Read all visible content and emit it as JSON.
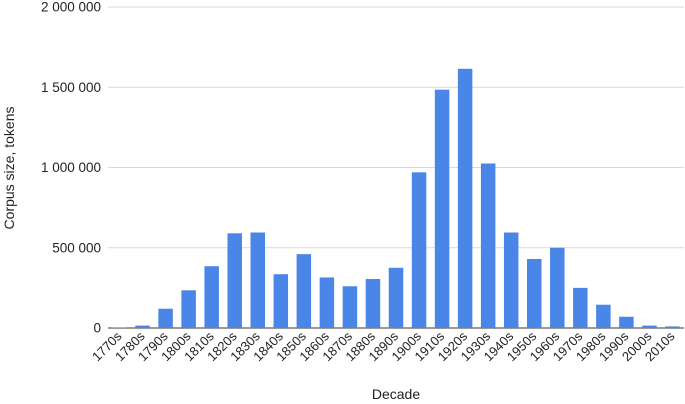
{
  "chart_data": {
    "type": "bar",
    "title": "",
    "xlabel": "Decade",
    "ylabel": "Corpus size, tokens",
    "ylim": [
      0,
      2000000
    ],
    "yticks": [
      0,
      500000,
      1000000,
      1500000,
      2000000
    ],
    "ytick_labels": [
      "0",
      "500 000",
      "1 000 000",
      "1 500 000",
      "2 000 000"
    ],
    "grid": true,
    "legend": "none",
    "bar_color": "#4a86e8",
    "categories": [
      "1770s",
      "1780s",
      "1790s",
      "1800s",
      "1810s",
      "1820s",
      "1830s",
      "1840s",
      "1850s",
      "1860s",
      "1870s",
      "1880s",
      "1890s",
      "1900s",
      "1910s",
      "1920s",
      "1930s",
      "1940s",
      "1950s",
      "1960s",
      "1970s",
      "1980s",
      "1990s",
      "2000s",
      "2010s"
    ],
    "values": [
      2000,
      15000,
      120000,
      235000,
      385000,
      590000,
      595000,
      335000,
      460000,
      315000,
      260000,
      305000,
      375000,
      970000,
      1485000,
      1615000,
      1025000,
      595000,
      430000,
      500000,
      250000,
      145000,
      70000,
      15000,
      10000
    ]
  }
}
